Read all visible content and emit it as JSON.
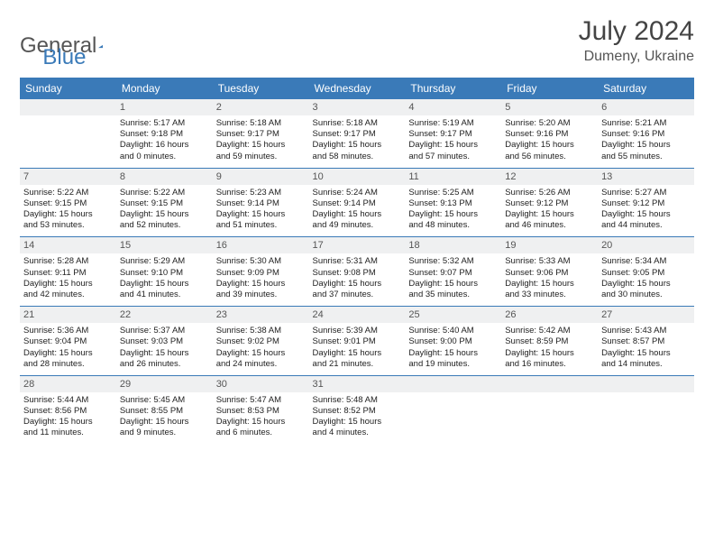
{
  "brand": {
    "part1": "General",
    "part2": "Blue"
  },
  "title": {
    "month": "July 2024",
    "location": "Dumeny, Ukraine"
  },
  "colors": {
    "header_bg": "#3a7ab8",
    "header_text": "#ffffff",
    "daynum_bg": "#eff0f1",
    "border": "#3a7ab8",
    "body_text": "#222222"
  },
  "weekdays": [
    "Sunday",
    "Monday",
    "Tuesday",
    "Wednesday",
    "Thursday",
    "Friday",
    "Saturday"
  ],
  "weeks": [
    [
      {
        "day": "",
        "sunrise": "",
        "sunset": "",
        "daylight1": "",
        "daylight2": ""
      },
      {
        "day": "1",
        "sunrise": "Sunrise: 5:17 AM",
        "sunset": "Sunset: 9:18 PM",
        "daylight1": "Daylight: 16 hours",
        "daylight2": "and 0 minutes."
      },
      {
        "day": "2",
        "sunrise": "Sunrise: 5:18 AM",
        "sunset": "Sunset: 9:17 PM",
        "daylight1": "Daylight: 15 hours",
        "daylight2": "and 59 minutes."
      },
      {
        "day": "3",
        "sunrise": "Sunrise: 5:18 AM",
        "sunset": "Sunset: 9:17 PM",
        "daylight1": "Daylight: 15 hours",
        "daylight2": "and 58 minutes."
      },
      {
        "day": "4",
        "sunrise": "Sunrise: 5:19 AM",
        "sunset": "Sunset: 9:17 PM",
        "daylight1": "Daylight: 15 hours",
        "daylight2": "and 57 minutes."
      },
      {
        "day": "5",
        "sunrise": "Sunrise: 5:20 AM",
        "sunset": "Sunset: 9:16 PM",
        "daylight1": "Daylight: 15 hours",
        "daylight2": "and 56 minutes."
      },
      {
        "day": "6",
        "sunrise": "Sunrise: 5:21 AM",
        "sunset": "Sunset: 9:16 PM",
        "daylight1": "Daylight: 15 hours",
        "daylight2": "and 55 minutes."
      }
    ],
    [
      {
        "day": "7",
        "sunrise": "Sunrise: 5:22 AM",
        "sunset": "Sunset: 9:15 PM",
        "daylight1": "Daylight: 15 hours",
        "daylight2": "and 53 minutes."
      },
      {
        "day": "8",
        "sunrise": "Sunrise: 5:22 AM",
        "sunset": "Sunset: 9:15 PM",
        "daylight1": "Daylight: 15 hours",
        "daylight2": "and 52 minutes."
      },
      {
        "day": "9",
        "sunrise": "Sunrise: 5:23 AM",
        "sunset": "Sunset: 9:14 PM",
        "daylight1": "Daylight: 15 hours",
        "daylight2": "and 51 minutes."
      },
      {
        "day": "10",
        "sunrise": "Sunrise: 5:24 AM",
        "sunset": "Sunset: 9:14 PM",
        "daylight1": "Daylight: 15 hours",
        "daylight2": "and 49 minutes."
      },
      {
        "day": "11",
        "sunrise": "Sunrise: 5:25 AM",
        "sunset": "Sunset: 9:13 PM",
        "daylight1": "Daylight: 15 hours",
        "daylight2": "and 48 minutes."
      },
      {
        "day": "12",
        "sunrise": "Sunrise: 5:26 AM",
        "sunset": "Sunset: 9:12 PM",
        "daylight1": "Daylight: 15 hours",
        "daylight2": "and 46 minutes."
      },
      {
        "day": "13",
        "sunrise": "Sunrise: 5:27 AM",
        "sunset": "Sunset: 9:12 PM",
        "daylight1": "Daylight: 15 hours",
        "daylight2": "and 44 minutes."
      }
    ],
    [
      {
        "day": "14",
        "sunrise": "Sunrise: 5:28 AM",
        "sunset": "Sunset: 9:11 PM",
        "daylight1": "Daylight: 15 hours",
        "daylight2": "and 42 minutes."
      },
      {
        "day": "15",
        "sunrise": "Sunrise: 5:29 AM",
        "sunset": "Sunset: 9:10 PM",
        "daylight1": "Daylight: 15 hours",
        "daylight2": "and 41 minutes."
      },
      {
        "day": "16",
        "sunrise": "Sunrise: 5:30 AM",
        "sunset": "Sunset: 9:09 PM",
        "daylight1": "Daylight: 15 hours",
        "daylight2": "and 39 minutes."
      },
      {
        "day": "17",
        "sunrise": "Sunrise: 5:31 AM",
        "sunset": "Sunset: 9:08 PM",
        "daylight1": "Daylight: 15 hours",
        "daylight2": "and 37 minutes."
      },
      {
        "day": "18",
        "sunrise": "Sunrise: 5:32 AM",
        "sunset": "Sunset: 9:07 PM",
        "daylight1": "Daylight: 15 hours",
        "daylight2": "and 35 minutes."
      },
      {
        "day": "19",
        "sunrise": "Sunrise: 5:33 AM",
        "sunset": "Sunset: 9:06 PM",
        "daylight1": "Daylight: 15 hours",
        "daylight2": "and 33 minutes."
      },
      {
        "day": "20",
        "sunrise": "Sunrise: 5:34 AM",
        "sunset": "Sunset: 9:05 PM",
        "daylight1": "Daylight: 15 hours",
        "daylight2": "and 30 minutes."
      }
    ],
    [
      {
        "day": "21",
        "sunrise": "Sunrise: 5:36 AM",
        "sunset": "Sunset: 9:04 PM",
        "daylight1": "Daylight: 15 hours",
        "daylight2": "and 28 minutes."
      },
      {
        "day": "22",
        "sunrise": "Sunrise: 5:37 AM",
        "sunset": "Sunset: 9:03 PM",
        "daylight1": "Daylight: 15 hours",
        "daylight2": "and 26 minutes."
      },
      {
        "day": "23",
        "sunrise": "Sunrise: 5:38 AM",
        "sunset": "Sunset: 9:02 PM",
        "daylight1": "Daylight: 15 hours",
        "daylight2": "and 24 minutes."
      },
      {
        "day": "24",
        "sunrise": "Sunrise: 5:39 AM",
        "sunset": "Sunset: 9:01 PM",
        "daylight1": "Daylight: 15 hours",
        "daylight2": "and 21 minutes."
      },
      {
        "day": "25",
        "sunrise": "Sunrise: 5:40 AM",
        "sunset": "Sunset: 9:00 PM",
        "daylight1": "Daylight: 15 hours",
        "daylight2": "and 19 minutes."
      },
      {
        "day": "26",
        "sunrise": "Sunrise: 5:42 AM",
        "sunset": "Sunset: 8:59 PM",
        "daylight1": "Daylight: 15 hours",
        "daylight2": "and 16 minutes."
      },
      {
        "day": "27",
        "sunrise": "Sunrise: 5:43 AM",
        "sunset": "Sunset: 8:57 PM",
        "daylight1": "Daylight: 15 hours",
        "daylight2": "and 14 minutes."
      }
    ],
    [
      {
        "day": "28",
        "sunrise": "Sunrise: 5:44 AM",
        "sunset": "Sunset: 8:56 PM",
        "daylight1": "Daylight: 15 hours",
        "daylight2": "and 11 minutes."
      },
      {
        "day": "29",
        "sunrise": "Sunrise: 5:45 AM",
        "sunset": "Sunset: 8:55 PM",
        "daylight1": "Daylight: 15 hours",
        "daylight2": "and 9 minutes."
      },
      {
        "day": "30",
        "sunrise": "Sunrise: 5:47 AM",
        "sunset": "Sunset: 8:53 PM",
        "daylight1": "Daylight: 15 hours",
        "daylight2": "and 6 minutes."
      },
      {
        "day": "31",
        "sunrise": "Sunrise: 5:48 AM",
        "sunset": "Sunset: 8:52 PM",
        "daylight1": "Daylight: 15 hours",
        "daylight2": "and 4 minutes."
      },
      {
        "day": "",
        "sunrise": "",
        "sunset": "",
        "daylight1": "",
        "daylight2": ""
      },
      {
        "day": "",
        "sunrise": "",
        "sunset": "",
        "daylight1": "",
        "daylight2": ""
      },
      {
        "day": "",
        "sunrise": "",
        "sunset": "",
        "daylight1": "",
        "daylight2": ""
      }
    ]
  ]
}
